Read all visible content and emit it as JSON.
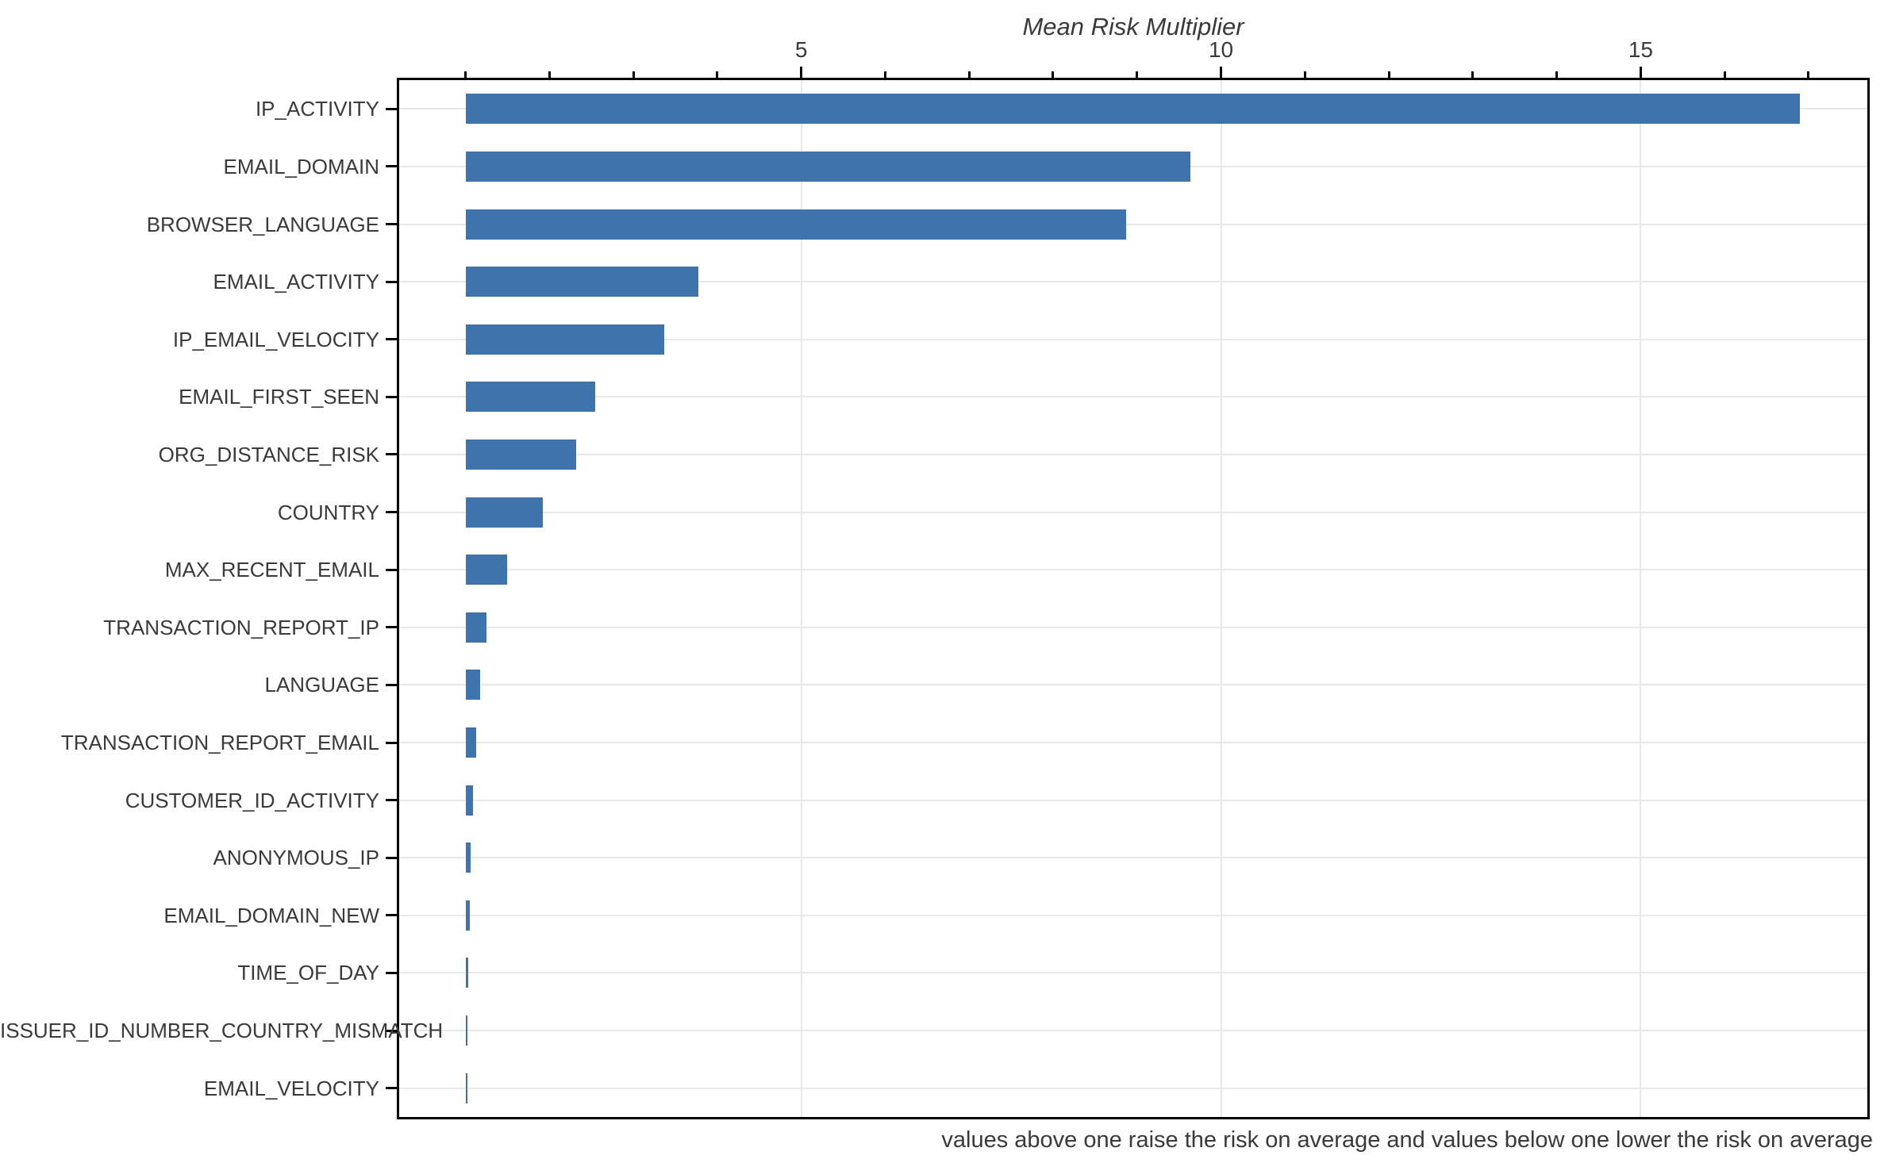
{
  "chart_data": {
    "type": "bar",
    "orientation": "horizontal",
    "title": "Mean Risk Multiplier",
    "note": "values above one raise the risk on average and values below one lower the risk on average",
    "categories": [
      "IP_ACTIVITY",
      "EMAIL_DOMAIN",
      "BROWSER_LANGUAGE",
      "EMAIL_ACTIVITY",
      "IP_EMAIL_VELOCITY",
      "EMAIL_FIRST_SEEN",
      "ORG_DISTANCE_RISK",
      "COUNTRY",
      "MAX_RECENT_EMAIL",
      "TRANSACTION_REPORT_IP",
      "LANGUAGE",
      "TRANSACTION_REPORT_EMAIL",
      "CUSTOMER_ID_ACTIVITY",
      "ANONYMOUS_IP",
      "EMAIL_DOMAIN_NEW",
      "TIME_OF_DAY",
      "ISSUER_ID_NUMBER_COUNTRY_MISMATCH",
      "EMAIL_VELOCITY"
    ],
    "values": [
      16.9,
      9.64,
      8.87,
      3.77,
      3.37,
      2.55,
      2.32,
      1.92,
      1.5,
      1.25,
      1.17,
      1.13,
      1.09,
      1.06,
      1.05,
      1.03,
      1.02,
      1.015
    ],
    "bar_baseline": 1,
    "xlabel": "Mean Risk Multiplier",
    "xlabel_position": "top",
    "xlim": [
      0.21,
      17.7
    ],
    "x_major_ticks": [
      5,
      10,
      15
    ],
    "x_major_tick_labels": [
      "5",
      "10",
      "15"
    ],
    "x_minor_ticks_from": 1,
    "x_minor_ticks_to": 17,
    "grid": {
      "horizontal_per_category": true,
      "vertical_at_major_ticks": true
    },
    "legend_position": "none",
    "colors": {
      "bar": "#3e74ab",
      "grid": "#e8e8e8",
      "axis": "#000000",
      "text": "#3a3a3a"
    }
  }
}
